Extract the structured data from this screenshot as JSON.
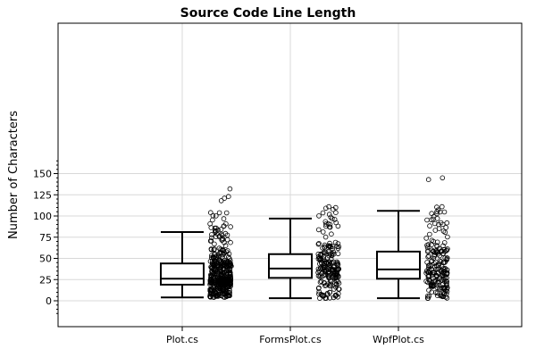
{
  "chart_data": {
    "type": "box",
    "title": "Source Code Line Length",
    "ylabel": "Number of Characters",
    "xlabel": "",
    "ylim": [
      -15,
      165
    ],
    "yticks": [
      0,
      25,
      50,
      75,
      100,
      125,
      150
    ],
    "grid": true,
    "categories": [
      "Plot.cs",
      "FormsPlot.cs",
      "WpfPlot.cs"
    ],
    "boxes": [
      {
        "name": "Plot.cs",
        "whisker_low": 4,
        "q1": 19,
        "median": 26,
        "q3": 44,
        "whisker_high": 81,
        "outliers": [
          132,
          123,
          121,
          118
        ]
      },
      {
        "name": "FormsPlot.cs",
        "whisker_low": 3,
        "q1": 27,
        "median": 38,
        "q3": 55,
        "whisker_high": 97,
        "outliers": []
      },
      {
        "name": "WpfPlot.cs",
        "whisker_low": 3,
        "q1": 26,
        "median": 37,
        "q3": 58,
        "whisker_high": 106,
        "outliers": [
          145,
          143
        ]
      }
    ],
    "points": [
      {
        "name": "Plot.cs",
        "count": 420,
        "min": 4,
        "max": 104,
        "median": 26,
        "q1": 19,
        "q3": 44,
        "extra": [
          132,
          123,
          121,
          118
        ]
      },
      {
        "name": "FormsPlot.cs",
        "count": 200,
        "min": 3,
        "max": 111,
        "median": 38,
        "q1": 27,
        "q3": 55,
        "extra": []
      },
      {
        "name": "WpfPlot.cs",
        "count": 200,
        "min": 3,
        "max": 111,
        "median": 37,
        "q1": 26,
        "q3": 58,
        "extra": [
          145,
          143
        ]
      }
    ]
  }
}
